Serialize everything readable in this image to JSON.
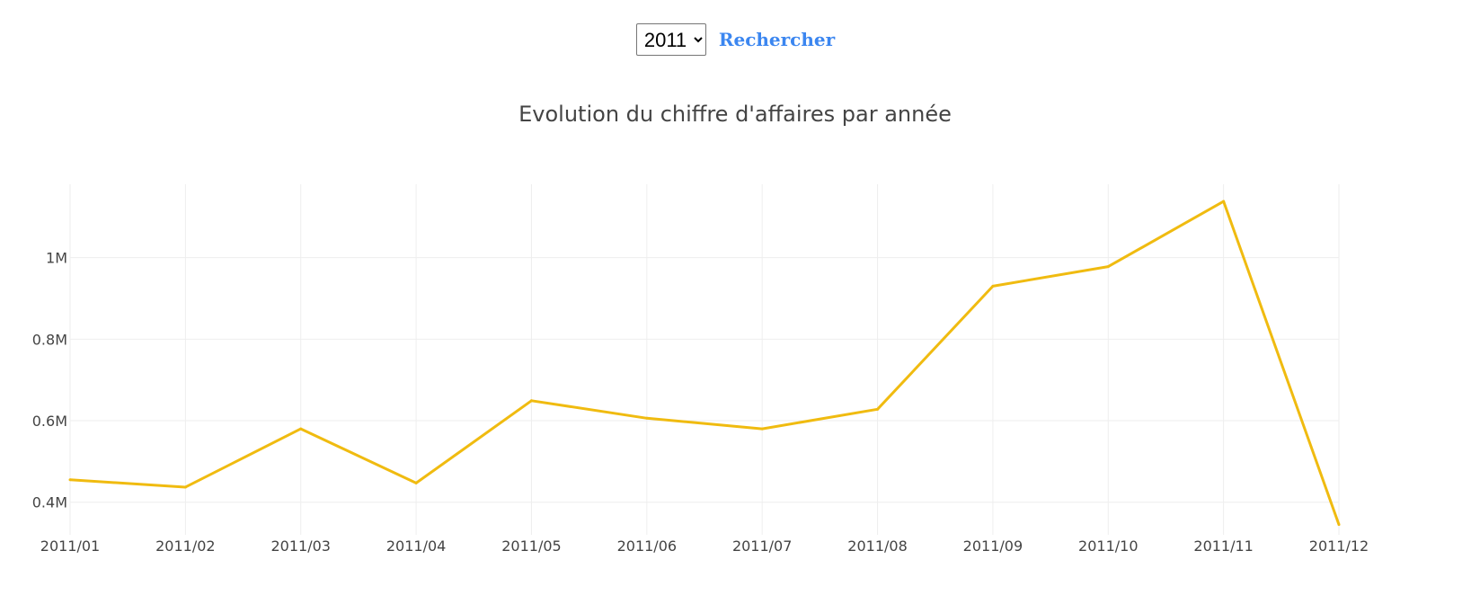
{
  "controls": {
    "year_options": [
      "2011"
    ],
    "year_selected": "2011",
    "search_label": "Rechercher"
  },
  "chart_data": {
    "type": "line",
    "title": "Evolution du chiffre d'affaires par année",
    "xlabel": "",
    "ylabel": "",
    "categories": [
      "2011/01",
      "2011/02",
      "2011/03",
      "2011/04",
      "2011/05",
      "2011/06",
      "2011/07",
      "2011/08",
      "2011/09",
      "2011/10",
      "2011/11",
      "2011/12"
    ],
    "values": [
      455000,
      437000,
      580000,
      447000,
      649000,
      606000,
      580000,
      628000,
      930000,
      978000,
      1138000,
      345000
    ],
    "yticks": [
      400000,
      600000,
      800000,
      1000000
    ],
    "ytick_labels": [
      "0.4M",
      "0.6M",
      "0.8M",
      "1M"
    ],
    "ylim": [
      320000,
      1180000
    ],
    "grid": true,
    "legend": "none",
    "line_color": "#f0bb10",
    "grid_color": "#eeeeee"
  }
}
